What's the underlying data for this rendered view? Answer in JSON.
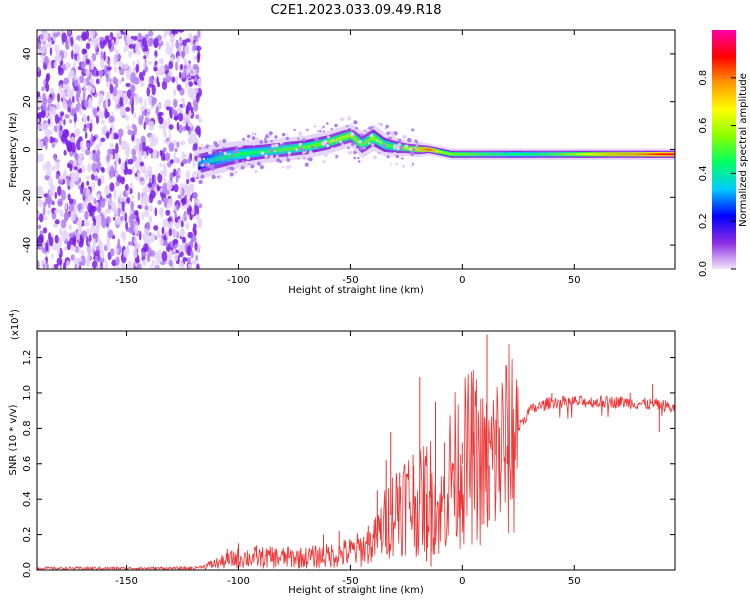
{
  "title": "C2E1.2023.033.09.49.R18",
  "chart_data": [
    {
      "type": "heatmap",
      "title": "C2E1.2023.033.09.49.R18",
      "xlabel": "Height of straight line (km)",
      "ylabel": "Frequency (Hz)",
      "xlim": [
        -190,
        95
      ],
      "ylim": [
        -50,
        50
      ],
      "xticks": [
        -150,
        -100,
        -50,
        0,
        50
      ],
      "yticks": [
        -40,
        -20,
        0,
        20,
        40
      ],
      "colorbar": {
        "label": "Normalized spectral amplitude",
        "range": [
          0,
          1
        ],
        "ticks": [
          0.0,
          0.2,
          0.4,
          0.6,
          0.8
        ],
        "colors": [
          "#f2e4fa",
          "#8a2be2",
          "#0000ff",
          "#00ccff",
          "#00ff66",
          "#88ff00",
          "#ffff00",
          "#ff9900",
          "#ff0000",
          "#ff00aa"
        ]
      },
      "ridge": {
        "x": [
          -118,
          -110,
          -100,
          -90,
          -80,
          -70,
          -60,
          -50,
          -45,
          -40,
          -35,
          -30,
          -25,
          -20,
          -15,
          -10,
          -5,
          0,
          10,
          20,
          30,
          40,
          50,
          60,
          70,
          80,
          90,
          95
        ],
        "frequency": [
          -6,
          -4,
          -2,
          -1,
          0,
          1,
          3,
          6,
          2,
          5,
          2,
          1,
          0.5,
          0,
          0,
          -1,
          -2,
          -2,
          -2,
          -2,
          -2,
          -2,
          -2,
          -2,
          -2,
          -2,
          -2,
          -2
        ],
        "amplitude": [
          0.3,
          0.4,
          0.45,
          0.45,
          0.5,
          0.5,
          0.55,
          0.6,
          0.5,
          0.55,
          0.5,
          0.5,
          0.6,
          0.7,
          0.85,
          0.6,
          0.55,
          0.55,
          0.5,
          0.45,
          0.45,
          0.5,
          0.6,
          0.7,
          0.75,
          0.8,
          0.9,
          0.95
        ],
        "width_hz": [
          8,
          8,
          7,
          6,
          6,
          6,
          6,
          6,
          7,
          7,
          6,
          5,
          4,
          4,
          3,
          3,
          3,
          3,
          3,
          3,
          3,
          3,
          3,
          3,
          3,
          3,
          3,
          3
        ]
      },
      "noise_region": [
        -190,
        -117
      ]
    },
    {
      "type": "line",
      "xlabel": "Height of straight line (km)",
      "ylabel": "SNR (10 * v/v)",
      "multiplier_label": "(x10",
      "multiplier_exp": "4",
      "xlim": [
        -190,
        95
      ],
      "ylim": [
        0,
        1.35
      ],
      "xticks": [
        -150,
        -100,
        -50,
        0,
        50
      ],
      "yticks": [
        0.0,
        0.2,
        0.4,
        0.6,
        0.8,
        1.0,
        1.2
      ],
      "color": "#ee3333",
      "baseline": {
        "x": [
          -190,
          -120,
          -112,
          -100,
          -90,
          -80,
          -70,
          -60,
          -50,
          -45,
          -40,
          -35,
          -30,
          -25,
          -20,
          -15,
          -10,
          -5,
          0,
          5,
          10,
          15,
          20,
          25,
          30,
          40,
          50,
          60,
          70,
          80,
          90,
          95
        ],
        "y": [
          0.01,
          0.01,
          0.03,
          0.07,
          0.07,
          0.07,
          0.07,
          0.08,
          0.1,
          0.12,
          0.15,
          0.25,
          0.35,
          0.4,
          0.35,
          0.45,
          0.3,
          0.55,
          0.6,
          0.65,
          0.55,
          0.65,
          0.7,
          0.8,
          0.9,
          0.95,
          0.95,
          0.95,
          0.95,
          0.94,
          0.93,
          0.91
        ]
      },
      "spikes": [
        {
          "x": -112,
          "y": 0.05
        },
        {
          "x": -105,
          "y": 0.12
        },
        {
          "x": -100,
          "y": 0.15
        },
        {
          "x": -92,
          "y": 0.14
        },
        {
          "x": -85,
          "y": 0.13
        },
        {
          "x": -78,
          "y": 0.13
        },
        {
          "x": -62,
          "y": 0.2
        },
        {
          "x": -55,
          "y": 0.22
        },
        {
          "x": -42,
          "y": 0.25
        },
        {
          "x": -38,
          "y": 0.45
        },
        {
          "x": -34,
          "y": 0.62
        },
        {
          "x": -32,
          "y": 0.78
        },
        {
          "x": -28,
          "y": 0.55
        },
        {
          "x": -22,
          "y": 0.65
        },
        {
          "x": -19,
          "y": 1.09
        },
        {
          "x": -16,
          "y": 0.05
        },
        {
          "x": -14,
          "y": 0.02
        },
        {
          "x": -12,
          "y": 0.95
        },
        {
          "x": -8,
          "y": 0.72
        },
        {
          "x": -4,
          "y": 0.6
        },
        {
          "x": 0,
          "y": 0.72
        },
        {
          "x": 5,
          "y": 0.78
        },
        {
          "x": 8,
          "y": 0.45
        },
        {
          "x": 11,
          "y": 1.33
        },
        {
          "x": 12,
          "y": 0.28
        },
        {
          "x": 15,
          "y": 0.85
        },
        {
          "x": 20,
          "y": 0.6
        },
        {
          "x": 40,
          "y": 1.0
        },
        {
          "x": 50,
          "y": 0.98
        },
        {
          "x": 75,
          "y": 1.0
        },
        {
          "x": 85,
          "y": 1.05
        },
        {
          "x": 88,
          "y": 0.78
        }
      ]
    }
  ]
}
